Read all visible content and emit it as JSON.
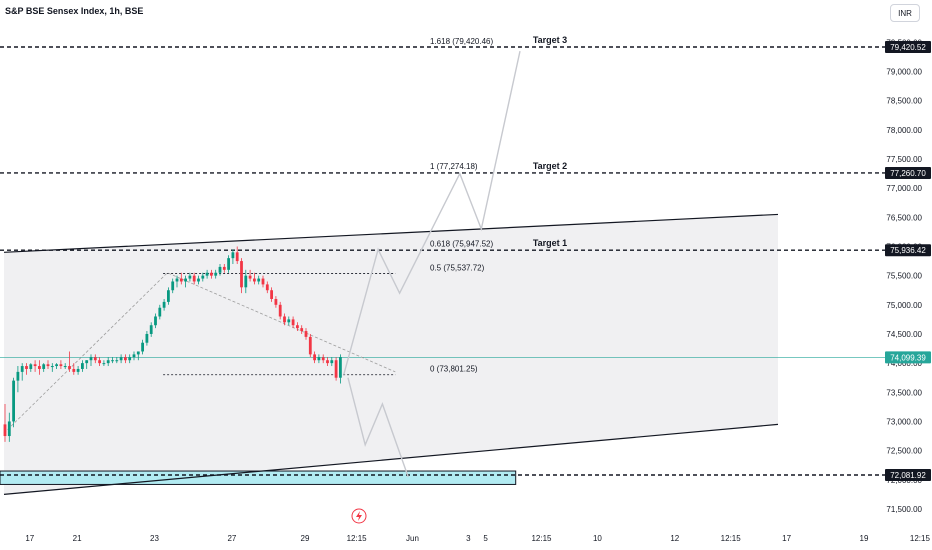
{
  "header": {
    "title": "S&P BSE Sensex Index, 1h, BSE",
    "currency": "INR"
  },
  "colors": {
    "up": "#089981",
    "down": "#f23645",
    "channel_fill": "#f0f0f2",
    "support_zone": "#b2ebf2",
    "current_price_line": "#26a69a",
    "fib_top_label": "#2962ff"
  },
  "icons": {
    "event_marker": "lightning-icon"
  },
  "chart_data": {
    "type": "candlestick",
    "title": "S&P BSE Sensex Index, 1h, BSE",
    "ylim": [
      71250,
      79850
    ],
    "y_ticks": [
      71500,
      72000,
      72500,
      73000,
      73500,
      74000,
      74500,
      75000,
      75500,
      76000,
      76500,
      77000,
      77500,
      78000,
      78500,
      79000,
      79500
    ],
    "y_tick_labels": [
      "71,500.00",
      "72,000.00",
      "72,500.00",
      "73,000.00",
      "73,500.00",
      "74,000.00",
      "74,500.00",
      "75,000.00",
      "75,500.00",
      "76,000.00",
      "76,500.00",
      "77,000.00",
      "77,500.00",
      "78,000.00",
      "78,500.00",
      "79,000.00",
      "79,500.00"
    ],
    "x_ticks": [
      {
        "label": "17",
        "i": 6
      },
      {
        "label": "21",
        "i": 17
      },
      {
        "label": "23",
        "i": 35
      },
      {
        "label": "27",
        "i": 53
      },
      {
        "label": "29",
        "i": 70
      },
      {
        "label": "12:15",
        "i": 82
      },
      {
        "label": "Jun",
        "i": 95
      },
      {
        "label": "3",
        "i": 108
      },
      {
        "label": "5",
        "i": 112
      },
      {
        "label": "12:15",
        "i": 125
      },
      {
        "label": "10",
        "i": 138
      },
      {
        "label": "12",
        "i": 156
      },
      {
        "label": "12:15",
        "i": 169
      },
      {
        "label": "17",
        "i": 182
      },
      {
        "label": "19",
        "i": 200
      },
      {
        "label": "12:15",
        "i": 213
      }
    ],
    "candles_ohlc": [
      [
        72950,
        73300,
        72650,
        72750
      ],
      [
        72750,
        73150,
        72650,
        73000
      ],
      [
        73000,
        73750,
        72900,
        73700
      ],
      [
        73700,
        73950,
        73500,
        73850
      ],
      [
        73850,
        74000,
        73700,
        73950
      ],
      [
        73950,
        74000,
        73800,
        73900
      ],
      [
        73900,
        74000,
        73850,
        73980
      ],
      [
        73980,
        74050,
        73850,
        73950
      ],
      [
        73950,
        74050,
        73800,
        73900
      ],
      [
        73900,
        74000,
        73850,
        73980
      ],
      [
        73980,
        74050,
        73900,
        73950
      ],
      [
        73950,
        74000,
        73850,
        73950
      ],
      [
        73950,
        74000,
        73900,
        73980
      ],
      [
        73980,
        74050,
        73900,
        73950
      ],
      [
        73950,
        74000,
        73900,
        73950
      ],
      [
        73950,
        74200,
        73850,
        73900
      ],
      [
        73900,
        74000,
        73800,
        73850
      ],
      [
        73850,
        73950,
        73800,
        73900
      ],
      [
        73900,
        74050,
        73850,
        74000
      ],
      [
        74000,
        74050,
        73900,
        74050
      ],
      [
        74050,
        74150,
        73950,
        74100
      ],
      [
        74100,
        74150,
        74000,
        74050
      ],
      [
        74050,
        74100,
        73950,
        74000
      ],
      [
        74000,
        74050,
        73950,
        74000
      ],
      [
        74000,
        74100,
        73950,
        74050
      ],
      [
        74050,
        74100,
        74000,
        74050
      ],
      [
        74050,
        74100,
        74000,
        74050
      ],
      [
        74050,
        74150,
        74000,
        74100
      ],
      [
        74100,
        74150,
        74000,
        74050
      ],
      [
        74050,
        74150,
        74000,
        74100
      ],
      [
        74100,
        74200,
        74050,
        74150
      ],
      [
        74150,
        74200,
        74050,
        74200
      ],
      [
        74200,
        74400,
        74150,
        74350
      ],
      [
        74350,
        74550,
        74300,
        74500
      ],
      [
        74500,
        74700,
        74450,
        74650
      ],
      [
        74650,
        74850,
        74600,
        74800
      ],
      [
        74800,
        75000,
        74750,
        74950
      ],
      [
        74950,
        75100,
        74900,
        75050
      ],
      [
        75050,
        75300,
        75000,
        75250
      ],
      [
        75250,
        75450,
        75200,
        75400
      ],
      [
        75400,
        75500,
        75300,
        75450
      ],
      [
        75450,
        75550,
        75350,
        75400
      ],
      [
        75400,
        75500,
        75300,
        75450
      ],
      [
        75450,
        75550,
        75400,
        75500
      ],
      [
        75500,
        75550,
        75350,
        75400
      ],
      [
        75400,
        75500,
        75350,
        75450
      ],
      [
        75450,
        75550,
        75400,
        75500
      ],
      [
        75500,
        75600,
        75450,
        75550
      ],
      [
        75550,
        75600,
        75450,
        75500
      ],
      [
        75500,
        75600,
        75450,
        75550
      ],
      [
        75550,
        75700,
        75500,
        75650
      ],
      [
        75650,
        75700,
        75550,
        75600
      ],
      [
        75600,
        75850,
        75550,
        75800
      ],
      [
        75800,
        75950,
        75700,
        75900
      ],
      [
        75900,
        76000,
        75700,
        75750
      ],
      [
        75750,
        75800,
        75200,
        75300
      ],
      [
        75300,
        75600,
        75200,
        75500
      ],
      [
        75500,
        75600,
        75400,
        75450
      ],
      [
        75450,
        75550,
        75350,
        75400
      ],
      [
        75400,
        75500,
        75350,
        75450
      ],
      [
        75450,
        75500,
        75300,
        75350
      ],
      [
        75350,
        75400,
        75200,
        75250
      ],
      [
        75250,
        75300,
        75050,
        75100
      ],
      [
        75100,
        75150,
        74950,
        75000
      ],
      [
        75000,
        75050,
        74750,
        74800
      ],
      [
        74800,
        74850,
        74650,
        74700
      ],
      [
        74700,
        74800,
        74650,
        74750
      ],
      [
        74750,
        74800,
        74600,
        74650
      ],
      [
        74650,
        74700,
        74550,
        74600
      ],
      [
        74600,
        74650,
        74500,
        74550
      ],
      [
        74550,
        74600,
        74400,
        74450
      ],
      [
        74450,
        74500,
        74100,
        74150
      ],
      [
        74150,
        74200,
        74000,
        74050
      ],
      [
        74050,
        74150,
        74000,
        74100
      ],
      [
        74100,
        74150,
        74000,
        74050
      ],
      [
        74050,
        74100,
        73950,
        74000
      ],
      [
        74000,
        74100,
        73950,
        74050
      ],
      [
        74050,
        74100,
        73700,
        73750
      ],
      [
        73750,
        74150,
        73650,
        74100
      ]
    ],
    "projection_path": [
      [
        79,
        73800
      ],
      [
        87,
        75950
      ],
      [
        92,
        75200
      ],
      [
        106,
        77250
      ],
      [
        111,
        76300
      ],
      [
        120,
        79350
      ]
    ],
    "projection_path_2": [
      [
        80,
        73750
      ],
      [
        84,
        72600
      ],
      [
        88,
        73300
      ],
      [
        94,
        72050
      ]
    ],
    "channel": {
      "upper": [
        [
          0,
          75900
        ],
        [
          180,
          76550
        ]
      ],
      "lower": [
        [
          0,
          71750
        ],
        [
          180,
          72950
        ]
      ]
    },
    "support_zone": {
      "i_from": 0,
      "i_to": 119,
      "y_from": 71920,
      "y_to": 72150
    },
    "horizontal_levels": [
      {
        "value": 79420.52,
        "label": "Target 3",
        "badge": "79,420.52"
      },
      {
        "value": 77260.7,
        "label": "Target 2",
        "badge": "77,260.70"
      },
      {
        "value": 75936.42,
        "label": "Target 1",
        "badge": "75,936.42"
      },
      {
        "value": 72081.92,
        "label": "",
        "badge": "72,081.92"
      }
    ],
    "current_price": {
      "value": 74099.39,
      "badge": "74,099.39"
    },
    "fib_levels": [
      {
        "value": 79420.46,
        "label": "1.618 (79,420.46)"
      },
      {
        "value": 77274.18,
        "label": "1 (77,274.18)"
      },
      {
        "value": 75947.52,
        "label": "0.618 (75,947.52)"
      },
      {
        "value": 75537.72,
        "label": "0.5 (75,537.72)"
      },
      {
        "value": 73801.25,
        "label": "0 (73,801.25)"
      }
    ],
    "fib_from_i": 37,
    "fib_to_i": 91,
    "fib_trend": {
      "start": [
        0,
        72800
      ],
      "peak": [
        38,
        75550
      ],
      "end": [
        91,
        73850
      ]
    }
  }
}
